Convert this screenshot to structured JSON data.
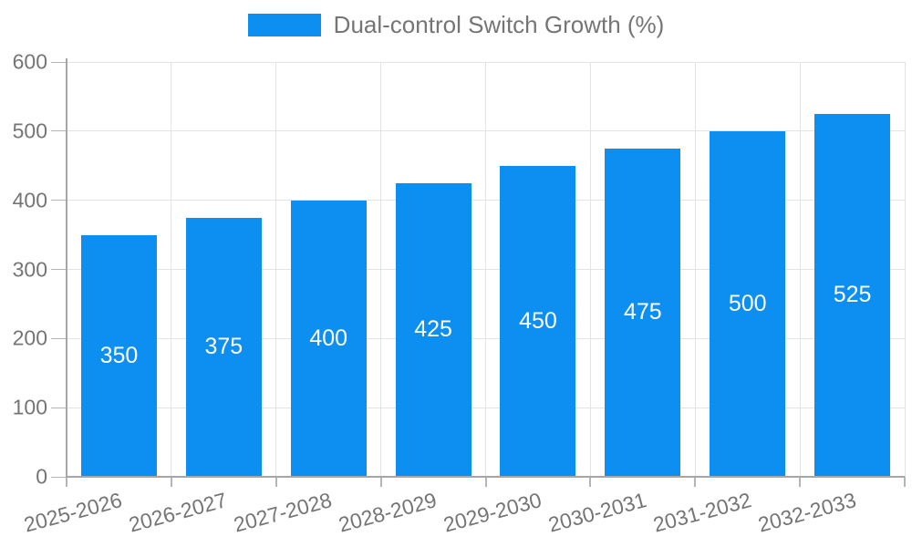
{
  "chart_data": {
    "type": "bar",
    "title": "",
    "legend": "Dual-control Switch Growth (%)",
    "legend_position": "top",
    "categories": [
      "2025-2026",
      "2026-2027",
      "2027-2028",
      "2028-2029",
      "2029-2030",
      "2030-2031",
      "2031-2032",
      "2032-2033"
    ],
    "values": [
      350,
      375,
      400,
      425,
      450,
      475,
      500,
      525
    ],
    "bar_value_labels": [
      "350",
      "375",
      "400",
      "425",
      "450",
      "475",
      "500",
      "525"
    ],
    "xlabel": "",
    "ylabel": "",
    "ylim": [
      0,
      600
    ],
    "yticks": [
      0,
      100,
      200,
      300,
      400,
      500,
      600
    ],
    "ytick_labels": [
      "0",
      "100",
      "200",
      "300",
      "400",
      "500",
      "600"
    ],
    "grid": true,
    "x_label_rotation_deg": -15,
    "colors": {
      "bar": "#0d8ef1",
      "grid": "#e3e3e3",
      "axis": "#a6a6a6",
      "tick": "#b5b5b5",
      "tick_text": "#757575",
      "bar_label_text": "#ffffff"
    }
  }
}
